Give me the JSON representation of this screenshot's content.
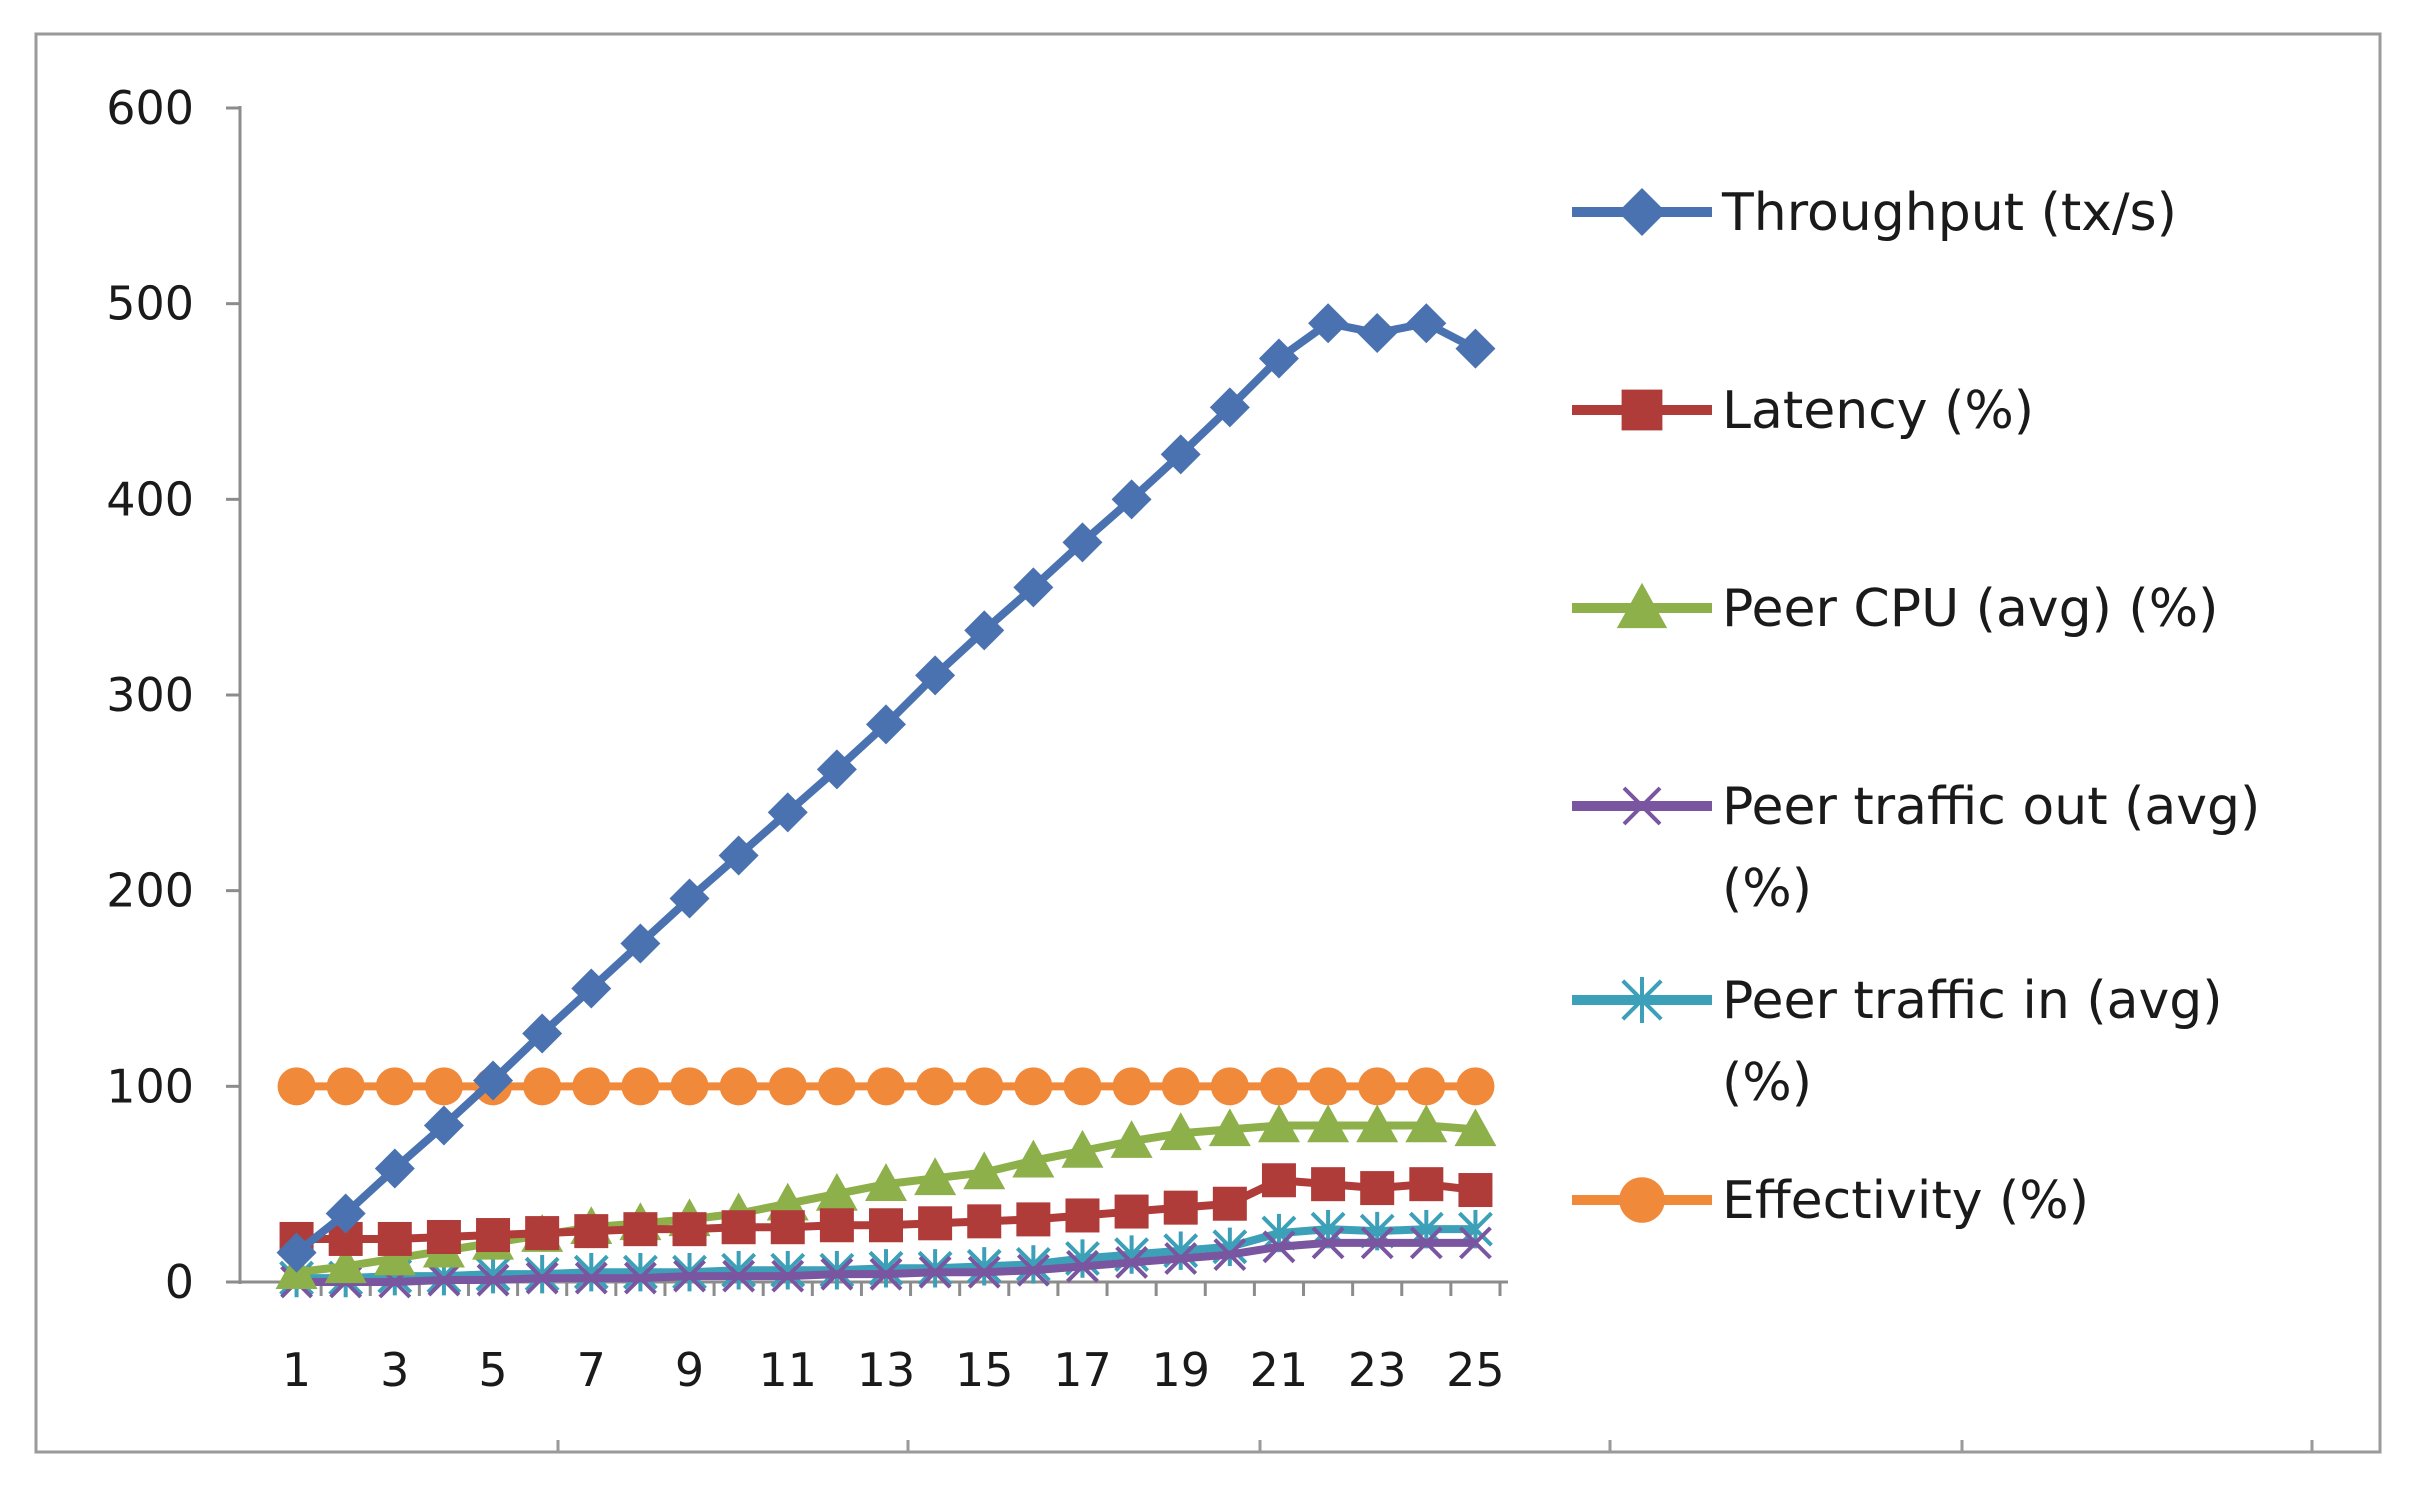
{
  "chart_data": {
    "type": "line",
    "title": "",
    "xlabel": "",
    "ylabel": "",
    "ylim": [
      0,
      600
    ],
    "yticks": [
      0,
      100,
      200,
      300,
      400,
      500,
      600
    ],
    "x": [
      1,
      2,
      3,
      4,
      5,
      6,
      7,
      8,
      9,
      10,
      11,
      12,
      13,
      14,
      15,
      16,
      17,
      18,
      19,
      20,
      21,
      22,
      23,
      24,
      25
    ],
    "xtick_labels": [
      "1",
      "3",
      "5",
      "7",
      "9",
      "11",
      "13",
      "15",
      "17",
      "19",
      "21",
      "23",
      "25"
    ],
    "grid": false,
    "legend_position": "right",
    "series": [
      {
        "name": "Throughput (tx/s)",
        "color": "#4a72b0",
        "marker": "diamond",
        "values": [
          15,
          35,
          58,
          80,
          103,
          127,
          150,
          173,
          196,
          218,
          240,
          262,
          285,
          310,
          333,
          355,
          378,
          400,
          423,
          447,
          472,
          490,
          485,
          490,
          477
        ]
      },
      {
        "name": "Latency (%)",
        "color": "#b03c3a",
        "marker": "square",
        "values": [
          22,
          22,
          22,
          23,
          24,
          25,
          26,
          27,
          27,
          28,
          28,
          29,
          29,
          30,
          31,
          32,
          34,
          36,
          38,
          40,
          52,
          50,
          48,
          50,
          47
        ]
      },
      {
        "name": "Peer CPU (avg) (%)",
        "color": "#8db04a",
        "marker": "triangle",
        "values": [
          5,
          8,
          12,
          16,
          20,
          24,
          28,
          30,
          32,
          35,
          40,
          45,
          50,
          53,
          56,
          62,
          67,
          72,
          76,
          78,
          80,
          80,
          80,
          80,
          78
        ]
      },
      {
        "name": "Peer traffic out (avg) (%)",
        "color": "#7a55a0",
        "marker": "x",
        "values": [
          0,
          0,
          0,
          1,
          1,
          2,
          2,
          2,
          3,
          3,
          3,
          4,
          4,
          5,
          5,
          6,
          8,
          10,
          12,
          14,
          18,
          20,
          20,
          20,
          20
        ]
      },
      {
        "name": "Peer traffic in (avg) (%)",
        "color": "#3ba0b8",
        "marker": "star",
        "values": [
          2,
          2,
          3,
          3,
          4,
          4,
          5,
          5,
          5,
          6,
          6,
          6,
          7,
          7,
          8,
          9,
          12,
          14,
          16,
          18,
          25,
          27,
          26,
          27,
          27
        ]
      },
      {
        "name": "Effectivity (%)",
        "color": "#f0893a",
        "marker": "circle",
        "values": [
          100,
          100,
          100,
          100,
          100,
          100,
          100,
          100,
          100,
          100,
          100,
          100,
          100,
          100,
          100,
          100,
          100,
          100,
          100,
          100,
          100,
          100,
          100,
          100,
          100
        ]
      }
    ]
  }
}
